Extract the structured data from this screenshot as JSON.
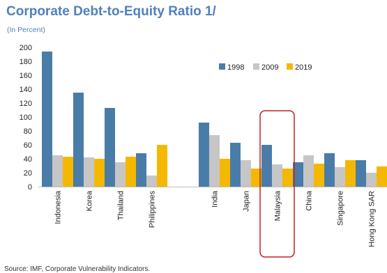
{
  "chart_data": {
    "type": "bar",
    "title": "Corporate Debt-to-Equity Ratio 1/",
    "subtitle": "(In Percent)",
    "source": "Source: IMF, Corporate Vulnerability Indicators.",
    "ylim": [
      0,
      200
    ],
    "yticks": [
      0,
      20,
      40,
      60,
      80,
      100,
      120,
      140,
      160,
      180,
      200
    ],
    "categories": [
      "Indonesia",
      "Korea",
      "Thailand",
      "Philippines",
      "India",
      "Japan",
      "Malaysia",
      "China",
      "Singapore",
      "Hong Kong SAR"
    ],
    "series": [
      {
        "name": "1998",
        "values": [
          194,
          135,
          113,
          48,
          92,
          63,
          60,
          35,
          48,
          38
        ]
      },
      {
        "name": "2009",
        "values": [
          45,
          42,
          35,
          16,
          74,
          38,
          32,
          45,
          28,
          20
        ]
      },
      {
        "name": "2019",
        "values": [
          43,
          40,
          43,
          60,
          40,
          26,
          26,
          33,
          38,
          29
        ]
      }
    ],
    "legend_position": "top-right",
    "grid": false,
    "highlight_category": "Malaysia"
  },
  "colors": {
    "s1998": "#4a7ca8",
    "s2009": "#c6c6c6",
    "s2019": "#f5b800",
    "title": "#4f81bd",
    "highlight": "#c0202a"
  }
}
